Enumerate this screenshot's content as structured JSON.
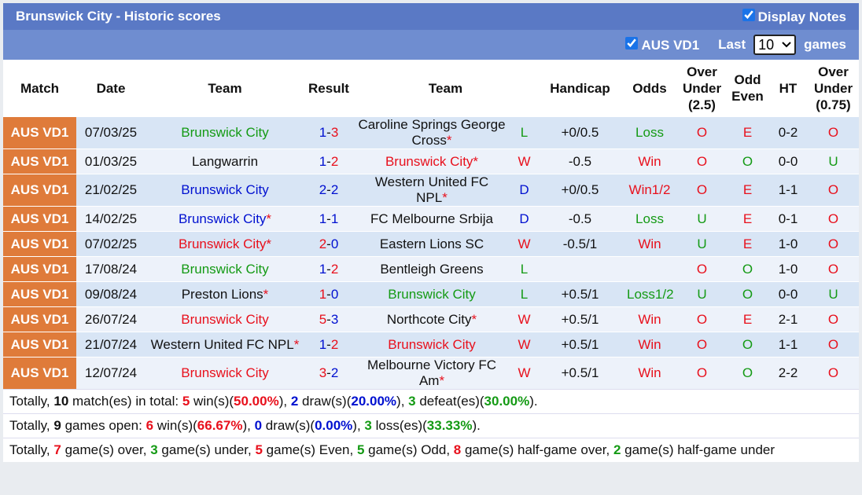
{
  "header": {
    "title": "Brunswick City - Historic scores",
    "display_notes": "Display Notes",
    "league_filter": "AUS VD1",
    "last": "Last",
    "count": "10",
    "games": "games"
  },
  "palette": {
    "red": "#e8101c",
    "green": "#149a14",
    "blue": "#0010d0",
    "black": "#111111"
  },
  "score_separator": "-",
  "cell_colors": {
    "wl": {
      "W": "red",
      "D": "blue",
      "L": "green"
    },
    "odds": {
      "Win": "red",
      "Win1/2": "red",
      "Loss": "green",
      "Loss1/2": "green"
    },
    "ou": {
      "O": "red",
      "U": "green"
    },
    "oe": {
      "O": "green",
      "E": "red"
    },
    "ou075": {
      "O": "red",
      "U": "green"
    }
  },
  "table": {
    "columns": [
      "Match",
      "Date",
      "Team",
      "Result",
      "Team",
      "Handicap",
      "Odds",
      "Over\nUnder\n(2.5)",
      "Odd\nEven",
      "HT",
      "Over\nUnder\n(0.75)"
    ],
    "rows": [
      {
        "league": "AUS VD1",
        "date": "07/03/25",
        "home": "Brunswick City",
        "home_color": "green",
        "result": [
          "1",
          "3"
        ],
        "away": "Caroline Springs George Cross",
        "away_note": "*",
        "away_color": "black",
        "wl": "L",
        "handicap": "+0/0.5",
        "odds": "Loss",
        "ou": "O",
        "oe": "E",
        "ht": "0-2",
        "ou075": "O"
      },
      {
        "league": "AUS VD1",
        "date": "01/03/25",
        "home": "Langwarrin",
        "home_color": "black",
        "result": [
          "1",
          "2"
        ],
        "away": "Brunswick City",
        "away_note": "*",
        "away_color": "red",
        "wl": "W",
        "handicap": "-0.5",
        "odds": "Win",
        "ou": "O",
        "oe": "O",
        "ht": "0-0",
        "ou075": "U"
      },
      {
        "league": "AUS VD1",
        "date": "21/02/25",
        "home": "Brunswick City",
        "home_color": "blue",
        "result": [
          "2",
          "2"
        ],
        "away": "Western United FC NPL",
        "away_note": "*",
        "away_color": "black",
        "wl": "D",
        "handicap": "+0/0.5",
        "odds": "Win1/2",
        "ou": "O",
        "oe": "E",
        "ht": "1-1",
        "ou075": "O"
      },
      {
        "league": "AUS VD1",
        "date": "14/02/25",
        "home": "Brunswick City",
        "home_note": "*",
        "home_color": "blue",
        "result": [
          "1",
          "1"
        ],
        "away": "FC Melbourne Srbija",
        "away_color": "black",
        "wl": "D",
        "handicap": "-0.5",
        "odds": "Loss",
        "ou": "U",
        "oe": "E",
        "ht": "0-1",
        "ou075": "O"
      },
      {
        "league": "AUS VD1",
        "date": "07/02/25",
        "home": "Brunswick City",
        "home_note": "*",
        "home_color": "red",
        "result": [
          "2",
          "0"
        ],
        "away": "Eastern Lions SC",
        "away_color": "black",
        "wl": "W",
        "handicap": "-0.5/1",
        "odds": "Win",
        "ou": "U",
        "oe": "E",
        "ht": "1-0",
        "ou075": "O"
      },
      {
        "league": "AUS VD1",
        "date": "17/08/24",
        "home": "Brunswick City",
        "home_color": "green",
        "result": [
          "1",
          "2"
        ],
        "away": "Bentleigh Greens",
        "away_color": "black",
        "wl": "L",
        "handicap": null,
        "odds": null,
        "ou": "O",
        "oe": "O",
        "ht": "1-0",
        "ou075": "O"
      },
      {
        "league": "AUS VD1",
        "date": "09/08/24",
        "home": "Preston Lions",
        "home_note": "*",
        "home_color": "black",
        "result": [
          "1",
          "0"
        ],
        "away": "Brunswick City",
        "away_color": "green",
        "wl": "L",
        "handicap": "+0.5/1",
        "odds": "Loss1/2",
        "ou": "U",
        "oe": "O",
        "ht": "0-0",
        "ou075": "U"
      },
      {
        "league": "AUS VD1",
        "date": "26/07/24",
        "home": "Brunswick City",
        "home_color": "red",
        "result": [
          "5",
          "3"
        ],
        "away": "Northcote City",
        "away_note": "*",
        "away_color": "black",
        "wl": "W",
        "handicap": "+0.5/1",
        "odds": "Win",
        "ou": "O",
        "oe": "E",
        "ht": "2-1",
        "ou075": "O"
      },
      {
        "league": "AUS VD1",
        "date": "21/07/24",
        "home": "Western United FC NPL",
        "home_note": "*",
        "home_color": "black",
        "result": [
          "1",
          "2"
        ],
        "away": "Brunswick City",
        "away_color": "red",
        "wl": "W",
        "handicap": "+0.5/1",
        "odds": "Win",
        "ou": "O",
        "oe": "O",
        "ht": "1-1",
        "ou075": "O"
      },
      {
        "league": "AUS VD1",
        "date": "12/07/24",
        "home": "Brunswick City",
        "home_color": "red",
        "result": [
          "3",
          "2"
        ],
        "away": "Melbourne Victory FC Am",
        "away_note": "*",
        "away_color": "black",
        "wl": "W",
        "handicap": "+0.5/1",
        "odds": "Win",
        "ou": "O",
        "oe": "O",
        "ht": "2-2",
        "ou075": "O"
      }
    ]
  },
  "summary": [
    [
      {
        "t": "Totally, "
      },
      {
        "t": "10",
        "s": "black"
      },
      {
        "t": " match(es) in total: "
      },
      {
        "t": "5",
        "s": "red"
      },
      {
        "t": " win(s)("
      },
      {
        "t": "50.00%",
        "s": "red"
      },
      {
        "t": "), "
      },
      {
        "t": "2",
        "s": "blue"
      },
      {
        "t": " draw(s)("
      },
      {
        "t": "20.00%",
        "s": "blue"
      },
      {
        "t": "), "
      },
      {
        "t": "3",
        "s": "green"
      },
      {
        "t": " defeat(es)("
      },
      {
        "t": "30.00%",
        "s": "green"
      },
      {
        "t": ")."
      }
    ],
    [
      {
        "t": "Totally, "
      },
      {
        "t": "9",
        "s": "black"
      },
      {
        "t": " games open: "
      },
      {
        "t": "6",
        "s": "red"
      },
      {
        "t": " win(s)("
      },
      {
        "t": "66.67%",
        "s": "red"
      },
      {
        "t": "), "
      },
      {
        "t": "0",
        "s": "blue"
      },
      {
        "t": " draw(s)("
      },
      {
        "t": "0.00%",
        "s": "blue"
      },
      {
        "t": "), "
      },
      {
        "t": "3",
        "s": "green"
      },
      {
        "t": " loss(es)("
      },
      {
        "t": "33.33%",
        "s": "green"
      },
      {
        "t": ")."
      }
    ],
    [
      {
        "t": "Totally, "
      },
      {
        "t": "7",
        "s": "red"
      },
      {
        "t": " game(s) over, "
      },
      {
        "t": "3",
        "s": "green"
      },
      {
        "t": " game(s) under, "
      },
      {
        "t": "5",
        "s": "red"
      },
      {
        "t": " game(s) Even, "
      },
      {
        "t": "5",
        "s": "green"
      },
      {
        "t": " game(s) Odd, "
      },
      {
        "t": "8",
        "s": "red"
      },
      {
        "t": " game(s) half-game over, "
      },
      {
        "t": "2",
        "s": "green"
      },
      {
        "t": " game(s) half-game under"
      }
    ]
  ]
}
